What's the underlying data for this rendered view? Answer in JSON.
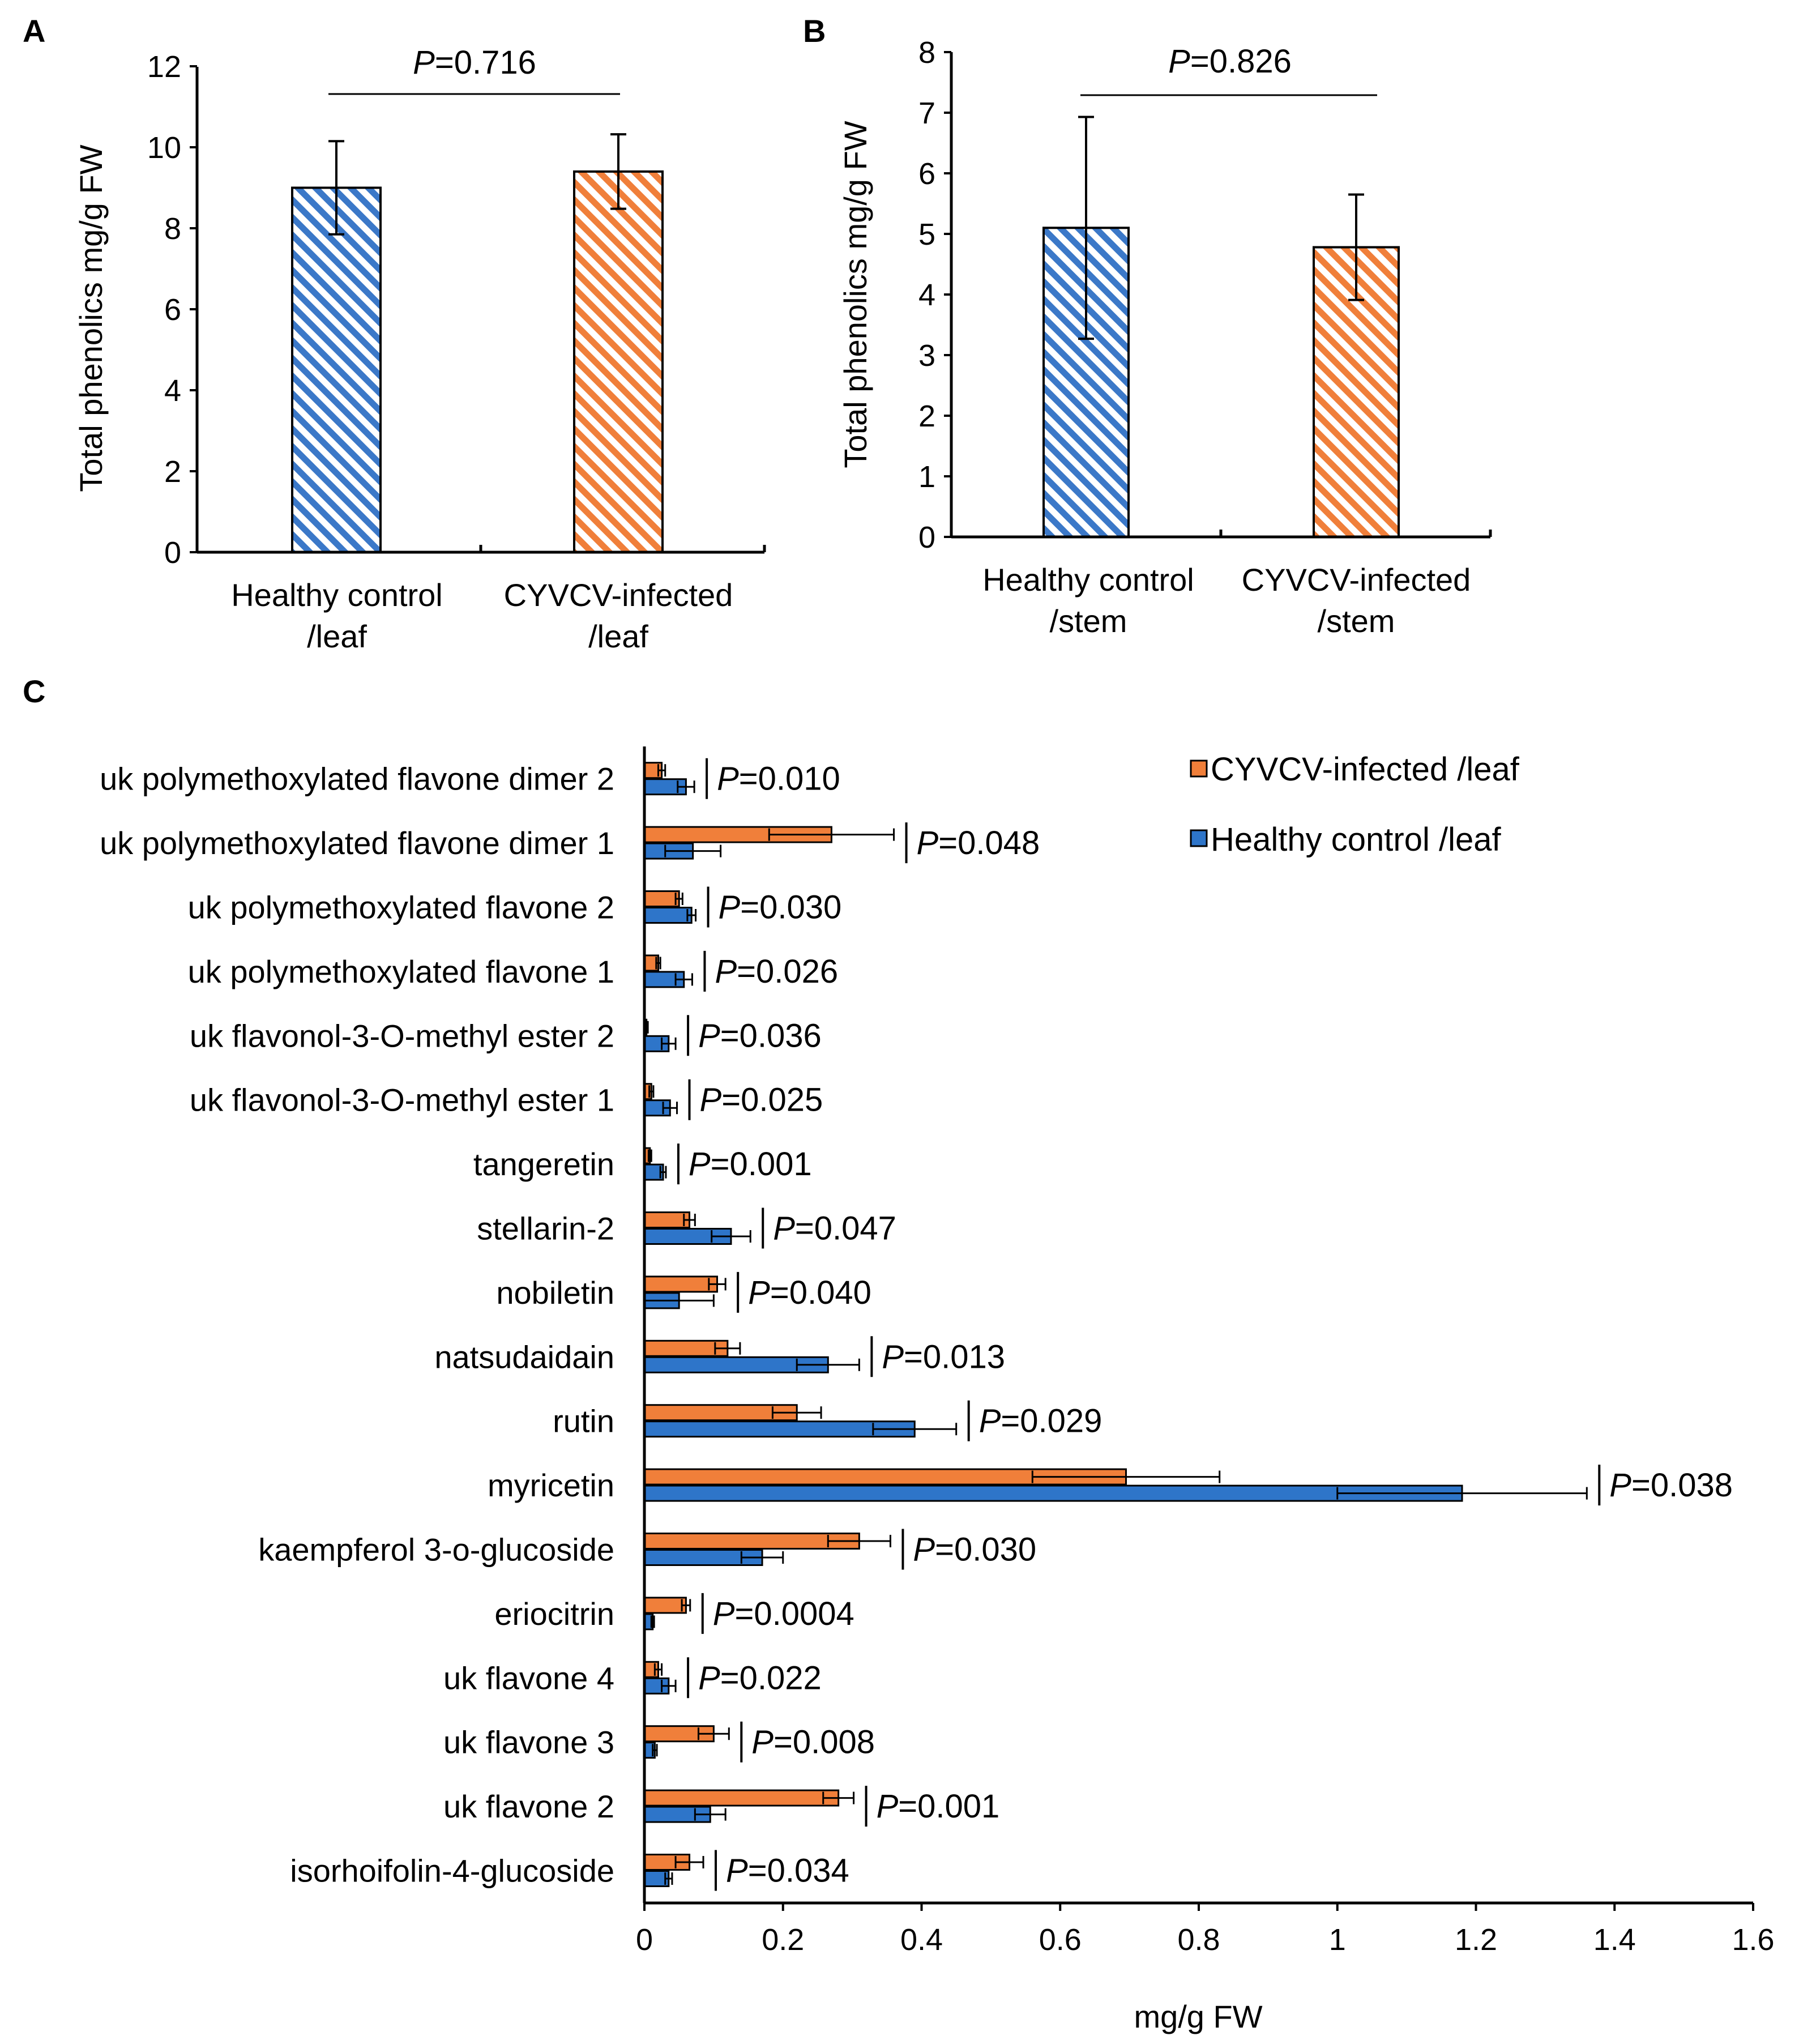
{
  "chart_data": [
    {
      "panel": "A",
      "type": "bar",
      "ylabel": "Total phenolics mg/g FW",
      "ylim": [
        0,
        12
      ],
      "yticks": [
        "0",
        "2",
        "4",
        "6",
        "8",
        "10",
        "12"
      ],
      "categories": [
        {
          "line1": "Healthy control",
          "line2": "/leaf"
        },
        {
          "line1": "CYVCV-infected",
          "line2": "/leaf"
        }
      ],
      "values": [
        9.0,
        9.4
      ],
      "errors": [
        1.15,
        0.92
      ],
      "colors": [
        "#3b78c8",
        "#f07f3a"
      ],
      "pvalue": {
        "prefix": "P",
        "value": "=0.716"
      }
    },
    {
      "panel": "B",
      "type": "bar",
      "ylabel": "Total phenolics mg/g FW",
      "ylim": [
        0,
        8
      ],
      "yticks": [
        "0",
        "1",
        "2",
        "3",
        "4",
        "5",
        "6",
        "7",
        "8"
      ],
      "categories": [
        {
          "line1": "Healthy control",
          "line2": "/stem"
        },
        {
          "line1": "CYVCV-infected",
          "line2": "/stem"
        }
      ],
      "values": [
        5.1,
        4.78
      ],
      "errors": [
        1.83,
        0.87
      ],
      "colors": [
        "#3b78c8",
        "#f07f3a"
      ],
      "pvalue": {
        "prefix": "P",
        "value": "=0.826"
      }
    },
    {
      "panel": "C",
      "type": "bar",
      "orientation": "horizontal",
      "xlabel": "mg/g FW",
      "xlim": [
        0,
        1.6
      ],
      "xticks": [
        "0",
        "0.2",
        "0.4",
        "0.6",
        "0.8",
        "1",
        "1.2",
        "1.4",
        "1.6"
      ],
      "legend": {
        "position": "top-right",
        "entries": [
          {
            "name": "CYVCV-infected /leaf",
            "color": "#f07f3a"
          },
          {
            "name": "Healthy control /leaf",
            "color": "#2e75c9"
          }
        ]
      },
      "categories": [
        "uk polymethoxylated flavone dimer 2",
        "uk polymethoxylated flavone dimer 1",
        "uk polymethoxylated flavone 2",
        "uk polymethoxylated flavone 1",
        "uk flavonol-3-O-methyl ester 2",
        "uk flavonol-3-O-methyl ester 1",
        "tangeretin",
        "stellarin-2",
        "nobiletin",
        "natsudaidain",
        "rutin",
        "myricetin",
        "kaempferol 3-o-glucoside",
        "eriocitrin",
        "uk flavone 4",
        "uk flavone 3",
        "uk flavone 2",
        "isorhoifolin-4-glucoside"
      ],
      "series": [
        {
          "name": "CYVCV-infected /leaf",
          "values": [
            0.025,
            0.27,
            0.05,
            0.02,
            0.003,
            0.01,
            0.008,
            0.065,
            0.105,
            0.12,
            0.22,
            0.695,
            0.31,
            0.06,
            0.02,
            0.1,
            0.28,
            0.065
          ],
          "errors": [
            0.005,
            0.09,
            0.005,
            0.003,
            0.002,
            0.003,
            0.002,
            0.008,
            0.012,
            0.018,
            0.035,
            0.135,
            0.045,
            0.006,
            0.005,
            0.022,
            0.022,
            0.02
          ]
        },
        {
          "name": "Healthy control /leaf",
          "values": [
            0.06,
            0.07,
            0.068,
            0.057,
            0.035,
            0.037,
            0.027,
            0.125,
            0.05,
            0.265,
            0.39,
            1.18,
            0.17,
            0.012,
            0.035,
            0.015,
            0.095,
            0.035
          ],
          "errors": [
            0.012,
            0.04,
            0.006,
            0.012,
            0.01,
            0.01,
            0.004,
            0.028,
            0.05,
            0.045,
            0.06,
            0.18,
            0.03,
            0.002,
            0.01,
            0.003,
            0.022,
            0.005
          ]
        }
      ],
      "pvalues": [
        {
          "prefix": "P",
          "value": "=0.010"
        },
        {
          "prefix": "P",
          "value": "=0.048"
        },
        {
          "prefix": "P",
          "value": "=0.030"
        },
        {
          "prefix": "P",
          "value": "=0.026"
        },
        {
          "prefix": "P",
          "value": "=0.036"
        },
        {
          "prefix": "P",
          "value": "=0.025"
        },
        {
          "prefix": "P",
          "value": "=0.001"
        },
        {
          "prefix": "P",
          "value": "=0.047"
        },
        {
          "prefix": "P",
          "value": "=0.040"
        },
        {
          "prefix": "P",
          "value": "=0.013"
        },
        {
          "prefix": "P",
          "value": "=0.029"
        },
        {
          "prefix": "P",
          "value": "=0.038"
        },
        {
          "prefix": "P",
          "value": "=0.030"
        },
        {
          "prefix": "P",
          "value": "=0.0004"
        },
        {
          "prefix": "P",
          "value": "=0.022"
        },
        {
          "prefix": "P",
          "value": "=0.008"
        },
        {
          "prefix": "P",
          "value": "=0.001"
        },
        {
          "prefix": "P",
          "value": "=0.034"
        }
      ]
    }
  ]
}
